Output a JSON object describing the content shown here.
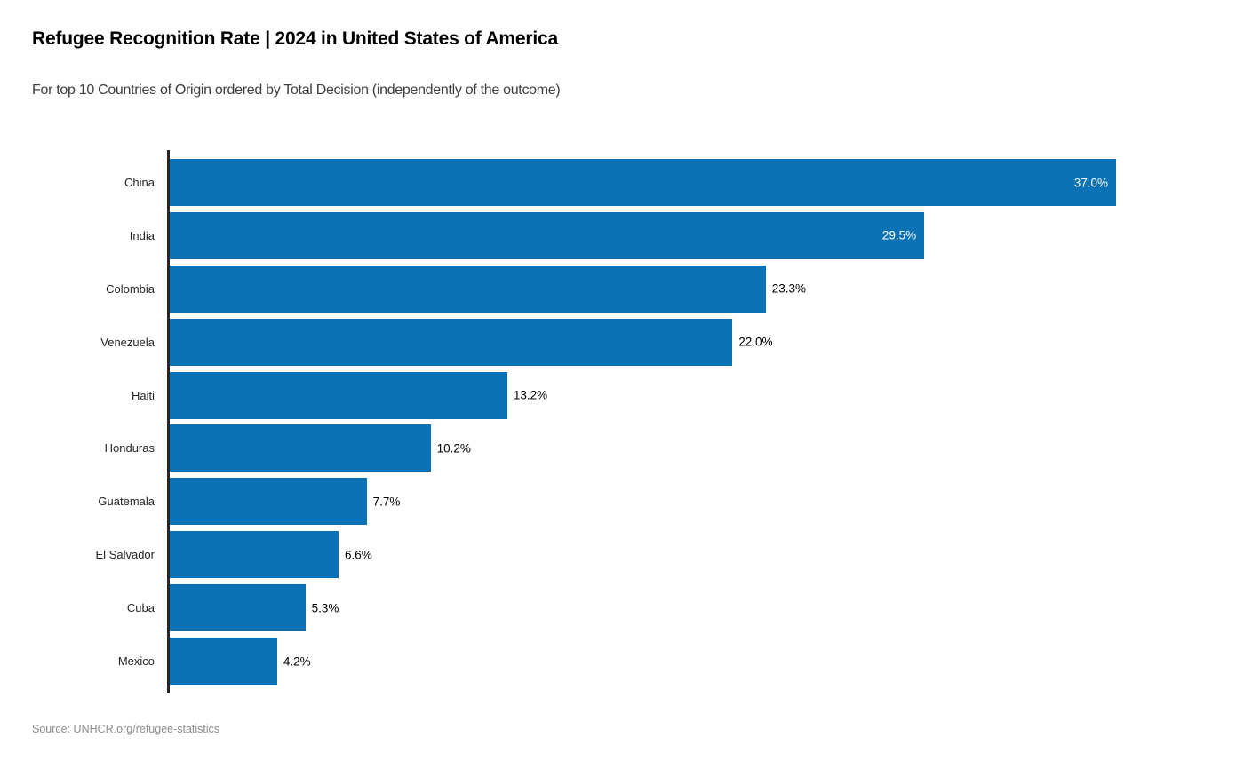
{
  "header": {
    "title": "Refugee Recognition Rate | 2024 in United States of America",
    "subtitle": "For top 10 Countries of Origin ordered by Total Decision (independently of the outcome)"
  },
  "footer": {
    "source": "Source: UNHCR.org/refugee-statistics"
  },
  "colors": {
    "bar": "#0b72b5",
    "axis": "#262626",
    "value_label_inside": "#ffffff",
    "value_label_outside": "#000000",
    "category_label": "#262626",
    "subtitle": "#3d3d3d",
    "source": "#8c8c8c"
  },
  "chart_data": {
    "type": "bar",
    "orientation": "horizontal",
    "title": "Refugee Recognition Rate | 2024 in United States of America",
    "subtitle": "For top 10 Countries of Origin ordered by Total Decision (independently of the outcome)",
    "xlabel": "",
    "ylabel": "",
    "xlim": [
      0,
      37.0
    ],
    "grid": false,
    "legend": false,
    "categories": [
      "China",
      "India",
      "Colombia",
      "Venezuela",
      "Haiti",
      "Honduras",
      "Guatemala",
      "El Salvador",
      "Cuba",
      "Mexico"
    ],
    "values": [
      37.0,
      29.5,
      23.3,
      22.0,
      13.2,
      10.2,
      7.7,
      6.6,
      5.3,
      4.2
    ],
    "value_labels": [
      "37.0%",
      "29.5%",
      "23.3%",
      "22.0%",
      "13.2%",
      "10.2%",
      "7.7%",
      "6.6%",
      "5.3%",
      "4.2%"
    ],
    "label_inside": [
      true,
      true,
      false,
      false,
      false,
      false,
      false,
      false,
      false,
      false
    ]
  }
}
